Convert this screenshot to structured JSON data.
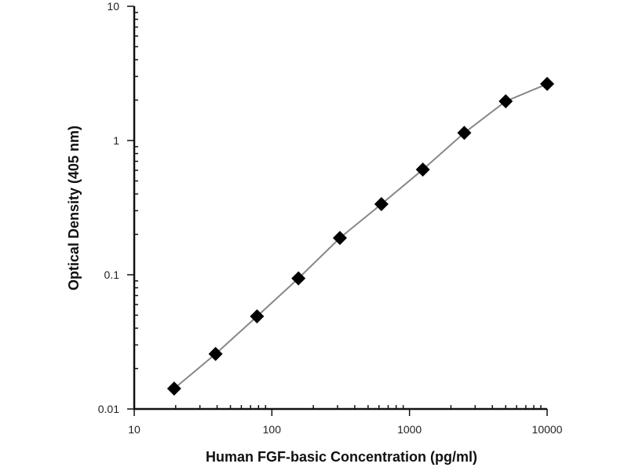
{
  "chart_data": {
    "type": "line",
    "title": "",
    "xlabel": "Human FGF-basic Concentration (pg/ml)",
    "ylabel": "Optical Density (405 nm)",
    "xscale": "log",
    "yscale": "log",
    "xlim": [
      10,
      10000
    ],
    "ylim": [
      0.01,
      10
    ],
    "x_ticks": [
      "10",
      "100",
      "1000",
      "10000"
    ],
    "y_ticks": [
      "0.01",
      "0.1",
      "1",
      "10"
    ],
    "grid": false,
    "marker": "diamond",
    "line_color": "#888888",
    "marker_color": "#000000",
    "x": [
      19.5,
      39,
      78,
      156,
      312,
      625,
      1250,
      2500,
      5000,
      10000
    ],
    "series": [
      {
        "values": [
          0.0142,
          0.0257,
          0.049,
          0.094,
          0.188,
          0.336,
          0.608,
          1.14,
          1.96,
          2.64
        ]
      }
    ]
  }
}
